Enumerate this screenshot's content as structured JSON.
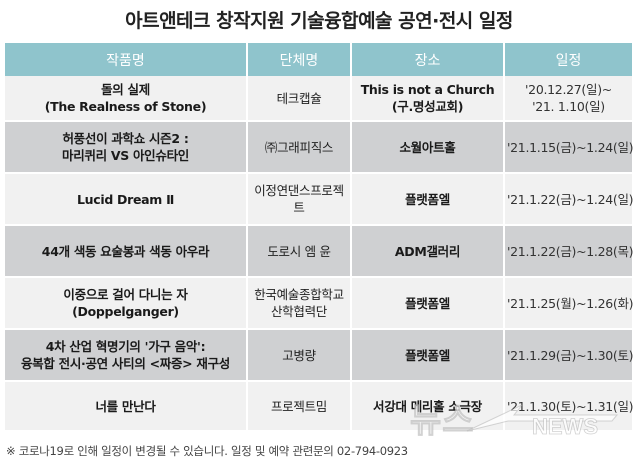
{
  "title": "아트앤테크 창작지원 기술융합예술 공연·전시 일정",
  "table": {
    "headers": [
      "작품명",
      "단체명",
      "장소",
      "일정"
    ],
    "rows": [
      {
        "work": [
          "돌의 실제",
          "(The Realness of Stone)"
        ],
        "group": [
          "테크캡슐"
        ],
        "place": [
          "This is not a Church",
          "(구.명성교회)"
        ],
        "date": [
          "'20.12.27(일)~",
          "'21. 1.10(일)"
        ]
      },
      {
        "work": [
          "허풍선이 과학쇼 시즌2 :",
          "마리퀴리 VS 아인슈타인"
        ],
        "group": [
          "㈜그래피직스"
        ],
        "place": [
          "소월아트홀"
        ],
        "date": [
          "'21.1.15(금)~1.24(일)"
        ]
      },
      {
        "work": [
          "Lucid Dream Ⅱ"
        ],
        "group": [
          "이정연댄스프로젝트"
        ],
        "place": [
          "플랫폼엘"
        ],
        "date": [
          "'21.1.22(금)~1.24(일)"
        ]
      },
      {
        "work": [
          "44개 색동 요술봉과 색동 아우라"
        ],
        "group": [
          "도로시 엠 윤"
        ],
        "place": [
          "ADM갤러리"
        ],
        "date": [
          "'21.1.22(금)~1.28(목)"
        ]
      },
      {
        "work": [
          "이중으로 걸어 다니는 자",
          "(Doppelganger)"
        ],
        "group": [
          "한국예술종합학교",
          "산학협력단"
        ],
        "place": [
          "플랫폼엘"
        ],
        "date": [
          "'21.1.25(월)~1.26(화)"
        ]
      },
      {
        "work": [
          "4차 산업 혁명기의 '가구 음악':",
          "융복합 전시·공연 사티의 <짜증> 재구성"
        ],
        "group": [
          "고병량"
        ],
        "place": [
          "플랫폼엘"
        ],
        "date": [
          "'21.1.29(금)~1.30(토)"
        ]
      },
      {
        "work": [
          "너를 만난다"
        ],
        "group": [
          "프로젝트밈"
        ],
        "place": [
          "서강대 메리홀 소극장"
        ],
        "date": [
          "'21.1.30(토)~1.31(일)"
        ]
      }
    ]
  },
  "footnote": "※ 코로나19로 인해 일정이 변경될 수 있습니다. 일정 및 예약 관련문의 02-794-0923",
  "watermark": "뉴스"
}
